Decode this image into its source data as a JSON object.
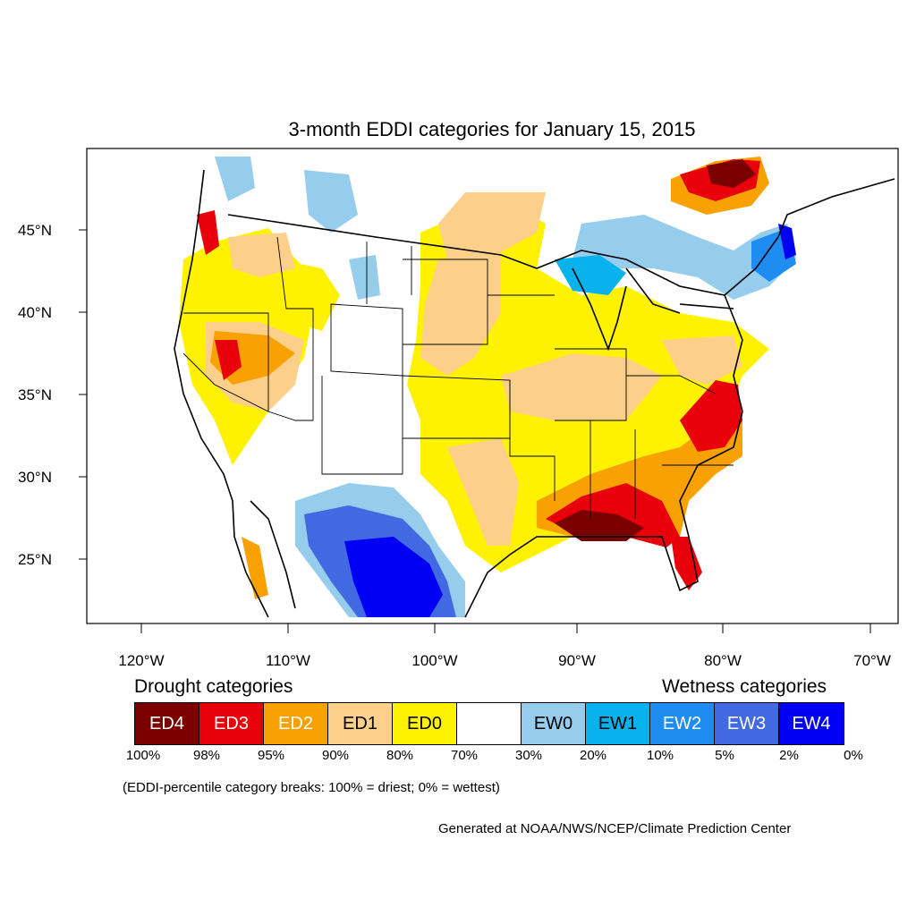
{
  "title": "3-month EDDI categories for January 15, 2015",
  "axes": {
    "lat_labels": [
      "45°N",
      "40°N",
      "35°N",
      "30°N",
      "25°N"
    ],
    "lon_labels": [
      "120°W",
      "110°W",
      "100°W",
      "90°W",
      "80°W",
      "70°W"
    ]
  },
  "legend": {
    "drought_heading": "Drought categories",
    "wetness_heading": "Wetness categories",
    "categories": [
      {
        "label": "ED4",
        "color": "#7a0000",
        "text_color": "#ffffff"
      },
      {
        "label": "ED3",
        "color": "#e8000b",
        "text_color": "#ffffff"
      },
      {
        "label": "ED2",
        "color": "#f9a100",
        "text_color": "#ffffff"
      },
      {
        "label": "ED1",
        "color": "#fcd08a",
        "text_color": "#000000"
      },
      {
        "label": "ED0",
        "color": "#fff200",
        "text_color": "#000000"
      },
      {
        "label": "",
        "color": "#ffffff",
        "text_color": "#000000"
      },
      {
        "label": "EW0",
        "color": "#97cdec",
        "text_color": "#000000"
      },
      {
        "label": "EW1",
        "color": "#08b2ec",
        "text_color": "#000000"
      },
      {
        "label": "EW2",
        "color": "#1e8cf0",
        "text_color": "#ffffff"
      },
      {
        "label": "EW3",
        "color": "#4169e1",
        "text_color": "#ffffff"
      },
      {
        "label": "EW4",
        "color": "#0000f5",
        "text_color": "#ffffff"
      }
    ],
    "percentiles": [
      "100%",
      "98%",
      "95%",
      "90%",
      "80%",
      "70%",
      "30%",
      "20%",
      "10%",
      "5%",
      "2%",
      "0%"
    ]
  },
  "note": "(EDDI-percentile category breaks: 100% = driest; 0% = wettest)",
  "credit": "Generated at NOAA/NWS/NCEP/Climate Prediction Center"
}
